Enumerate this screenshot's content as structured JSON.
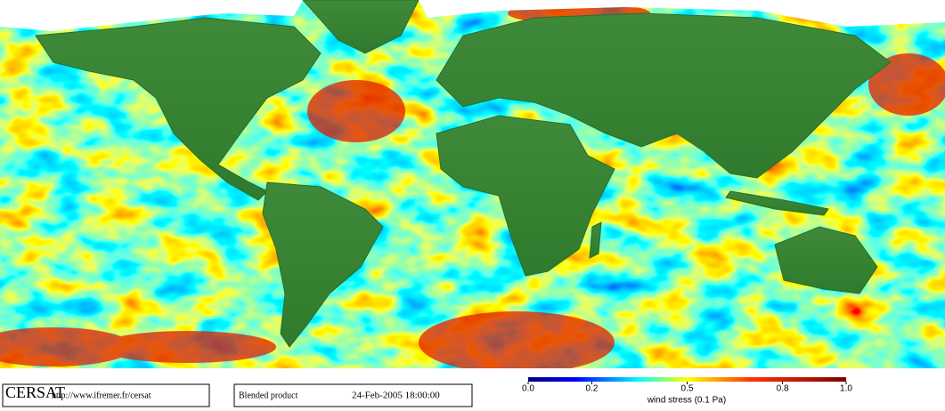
{
  "footer": {
    "logo": "CERSAT",
    "url": "http://www.ifremer.fr/cersat",
    "product": "Blended product",
    "datetime": "24-Feb-2005 18:00:00"
  },
  "colorbar": {
    "label": "wind stress (0.1 Pa)",
    "lim": [
      0,
      1
    ],
    "ticks": [
      {
        "value": 0,
        "label": "0.0"
      },
      {
        "value": 0.2,
        "label": "0.2"
      },
      {
        "value": 0.5,
        "label": "0.5"
      },
      {
        "value": 0.8,
        "label": "0.8"
      },
      {
        "value": 1,
        "label": "1.0"
      }
    ]
  }
}
